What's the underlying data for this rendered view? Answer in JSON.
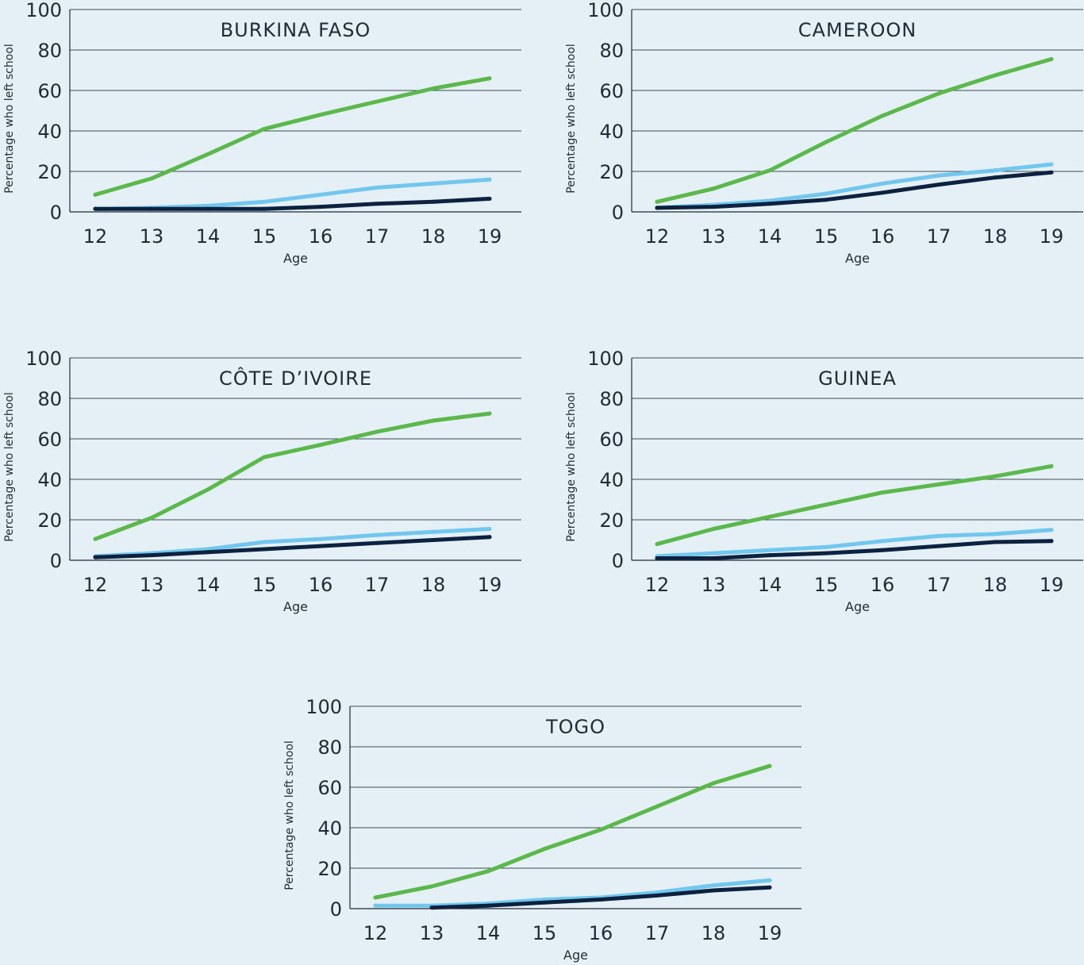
{
  "chart_data": [
    {
      "type": "line",
      "title": "BURKINA FASO",
      "xlabel": "Age",
      "ylabel": "Percentage who left school",
      "categories": [
        12,
        13,
        14,
        15,
        16,
        17,
        18,
        19
      ],
      "ylim": [
        0,
        100
      ],
      "yticks": [
        0,
        20,
        40,
        60,
        80,
        100
      ],
      "grid": true,
      "series": [
        {
          "color": "#5bb84a",
          "values": [
            8.5,
            16.5,
            28.5,
            41,
            48,
            54.5,
            61,
            66
          ]
        },
        {
          "color": "#72c7ef",
          "values": [
            1.5,
            2,
            3,
            5,
            8.5,
            12,
            14,
            16
          ]
        },
        {
          "color": "#0d2240",
          "values": [
            1.5,
            1.5,
            1.5,
            1.5,
            2.5,
            4,
            5,
            6.5
          ]
        }
      ]
    },
    {
      "type": "line",
      "title": "CAMEROON",
      "xlabel": "Age",
      "ylabel": "Percentage who left school",
      "categories": [
        12,
        13,
        14,
        15,
        16,
        17,
        18,
        19
      ],
      "ylim": [
        0,
        100
      ],
      "yticks": [
        0,
        20,
        40,
        60,
        80,
        100
      ],
      "grid": true,
      "series": [
        {
          "color": "#5bb84a",
          "values": [
            5,
            11.5,
            20.5,
            34.5,
            47.5,
            58.5,
            67.5,
            75.5
          ]
        },
        {
          "color": "#72c7ef",
          "values": [
            2,
            3.5,
            5.5,
            9,
            14,
            18,
            20.5,
            23.5
          ]
        },
        {
          "color": "#0d2240",
          "values": [
            2,
            2.5,
            4,
            6,
            9.5,
            13.5,
            17,
            19.5
          ]
        }
      ]
    },
    {
      "type": "line",
      "title": "CÔTE D’IVOIRE",
      "xlabel": "Age",
      "ylabel": "Percentage who left school",
      "categories": [
        12,
        13,
        14,
        15,
        16,
        17,
        18,
        19
      ],
      "ylim": [
        0,
        100
      ],
      "yticks": [
        0,
        20,
        40,
        60,
        80,
        100
      ],
      "grid": true,
      "series": [
        {
          "color": "#5bb84a",
          "values": [
            10.5,
            21,
            35,
            51,
            57,
            63.5,
            69,
            72.5
          ]
        },
        {
          "color": "#72c7ef",
          "values": [
            2,
            3.5,
            5.5,
            9,
            10.5,
            12.5,
            14,
            15.5
          ]
        },
        {
          "color": "#0d2240",
          "values": [
            1.5,
            2.5,
            4,
            5.5,
            7,
            8.5,
            10,
            11.5
          ]
        }
      ]
    },
    {
      "type": "line",
      "title": "GUINEA",
      "xlabel": "Age",
      "ylabel": "Percentage who left school",
      "categories": [
        12,
        13,
        14,
        15,
        16,
        17,
        18,
        19
      ],
      "ylim": [
        0,
        100
      ],
      "yticks": [
        0,
        20,
        40,
        60,
        80,
        100
      ],
      "grid": true,
      "series": [
        {
          "color": "#5bb84a",
          "values": [
            8,
            15.5,
            21.5,
            27.5,
            33.5,
            37.5,
            41.5,
            46.5
          ]
        },
        {
          "color": "#72c7ef",
          "values": [
            2,
            3.5,
            5,
            6.5,
            9.5,
            12,
            13,
            15
          ]
        },
        {
          "color": "#0d2240",
          "values": [
            1,
            1,
            2.5,
            3.5,
            5,
            7,
            9,
            9.5
          ]
        }
      ]
    },
    {
      "type": "line",
      "title": "TOGO",
      "xlabel": "Age",
      "ylabel": "Percentage who left school",
      "categories": [
        12,
        13,
        14,
        15,
        16,
        17,
        18,
        19
      ],
      "ylim": [
        0,
        100
      ],
      "yticks": [
        0,
        20,
        40,
        60,
        80,
        100
      ],
      "grid": true,
      "series": [
        {
          "color": "#5bb84a",
          "values": [
            5.5,
            11,
            18.5,
            29.5,
            39,
            50.5,
            62,
            70.5
          ]
        },
        {
          "color": "#72c7ef",
          "values": [
            1.5,
            1.5,
            2.5,
            4.5,
            5.5,
            8,
            11.5,
            14
          ]
        },
        {
          "color": "#0d2240",
          "values": [
            null,
            0.5,
            1.5,
            3,
            4.5,
            6.5,
            9,
            10.5
          ]
        }
      ]
    }
  ]
}
